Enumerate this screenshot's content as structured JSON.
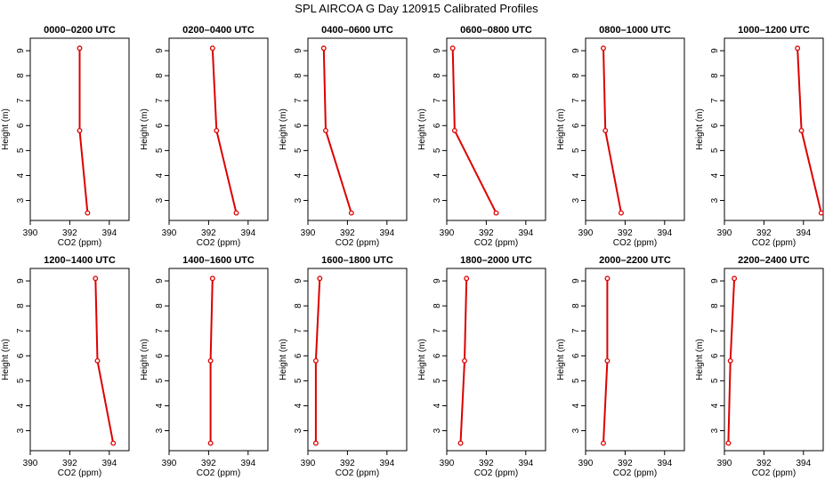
{
  "chart_data": {
    "type": "line",
    "title": "SPL AIRCOA G  Day 120915  Calibrated Profiles",
    "xlabel": "CO2 (ppm)",
    "ylabel": "Height (m)",
    "xlim": [
      390,
      395
    ],
    "ylim": [
      2.2,
      9.5
    ],
    "x_ticks": [
      390,
      392,
      394
    ],
    "y_ticks": [
      3,
      4,
      5,
      6,
      7,
      8,
      9
    ],
    "line_color": "#dd0000",
    "heights": [
      2.5,
      5.8,
      9.1
    ],
    "panels": [
      {
        "name": "0000–0200 UTC",
        "co2": [
          392.9,
          392.5,
          392.5
        ]
      },
      {
        "name": "0200–0400 UTC",
        "co2": [
          393.4,
          392.4,
          392.2
        ]
      },
      {
        "name": "0400–0600 UTC",
        "co2": [
          392.2,
          390.9,
          390.8
        ]
      },
      {
        "name": "0600–0800 UTC",
        "co2": [
          392.5,
          390.4,
          390.3
        ]
      },
      {
        "name": "0800–1000 UTC",
        "co2": [
          391.8,
          391.0,
          390.9
        ]
      },
      {
        "name": "1000–1200 UTC",
        "co2": [
          394.9,
          393.9,
          393.7
        ]
      },
      {
        "name": "1200–1400 UTC",
        "co2": [
          394.2,
          393.4,
          393.3
        ]
      },
      {
        "name": "1400–1600 UTC",
        "co2": [
          392.1,
          392.1,
          392.2
        ]
      },
      {
        "name": "1600–1800 UTC",
        "co2": [
          390.4,
          390.4,
          390.6
        ]
      },
      {
        "name": "1800–2000 UTC",
        "co2": [
          390.7,
          390.9,
          391.0
        ]
      },
      {
        "name": "2000–2200 UTC",
        "co2": [
          390.9,
          391.1,
          391.1
        ]
      },
      {
        "name": "2200–2400 UTC",
        "co2": [
          390.2,
          390.3,
          390.5
        ]
      }
    ]
  }
}
